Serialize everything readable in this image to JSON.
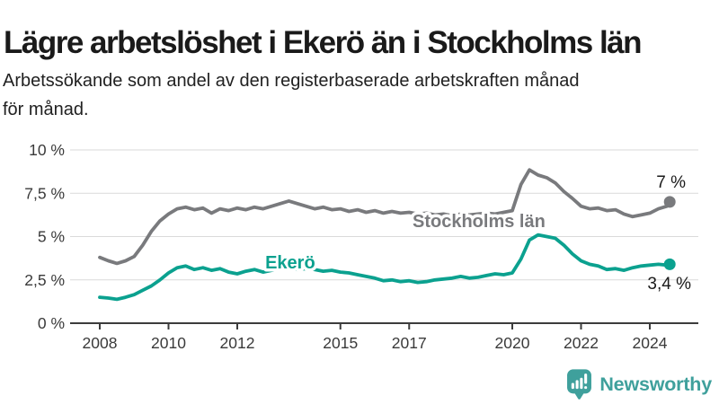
{
  "header": {
    "title": "Lägre arbetslöshet i Ekerö än i Stockholms län",
    "subtitle": "Arbetssökande som andel av den registerbaserade arbetskraften månad för månad.",
    "subtitle_lines": [
      "Arbetssökande som andel av den registerbaserade arbetskraften månad",
      "för månad."
    ]
  },
  "chart_data": {
    "type": "line",
    "title": "Lägre arbetslöshet i Ekerö än i Stockholms län",
    "xlabel": "",
    "ylabel": "Arbetssökande som andel av den registerbaserade arbetskraften",
    "unit": "%",
    "ylim": [
      0,
      10
    ],
    "xlim": [
      2008,
      2024.58
    ],
    "grid": "horizontal",
    "legend": "inline-labels",
    "yticks": [
      {
        "value": 0,
        "label": "0 %"
      },
      {
        "value": 2.5,
        "label": "2,5 %"
      },
      {
        "value": 5,
        "label": "5 %"
      },
      {
        "value": 7.5,
        "label": "7,5 %"
      },
      {
        "value": 10,
        "label": "10 %"
      }
    ],
    "xticks": [
      {
        "value": 2008,
        "label": "2008"
      },
      {
        "value": 2010,
        "label": "2010"
      },
      {
        "value": 2012,
        "label": "2012"
      },
      {
        "value": 2015,
        "label": "2015"
      },
      {
        "value": 2017,
        "label": "2017"
      },
      {
        "value": 2020,
        "label": "2020"
      },
      {
        "value": 2022,
        "label": "2022"
      },
      {
        "value": 2024,
        "label": "2024"
      }
    ],
    "x": [
      2008,
      2008.25,
      2008.5,
      2008.75,
      2009,
      2009.25,
      2009.5,
      2009.75,
      2010,
      2010.25,
      2010.5,
      2010.75,
      2011,
      2011.25,
      2011.5,
      2011.75,
      2012,
      2012.25,
      2012.5,
      2012.75,
      2013,
      2013.25,
      2013.5,
      2013.75,
      2014,
      2014.25,
      2014.5,
      2014.75,
      2015,
      2015.25,
      2015.5,
      2015.75,
      2016,
      2016.25,
      2016.5,
      2016.75,
      2017,
      2017.25,
      2017.5,
      2017.75,
      2018,
      2018.25,
      2018.5,
      2018.75,
      2019,
      2019.25,
      2019.5,
      2019.75,
      2020,
      2020.25,
      2020.5,
      2020.75,
      2021,
      2021.25,
      2021.5,
      2021.75,
      2022,
      2022.25,
      2022.5,
      2022.75,
      2023,
      2023.25,
      2023.5,
      2023.75,
      2024,
      2024.25,
      2024.5,
      2024.58
    ],
    "series": [
      {
        "name": "Stockholms län",
        "color": "#797a7d",
        "end_label": "7 %",
        "values": [
          3.8,
          3.6,
          3.45,
          3.6,
          3.85,
          4.5,
          5.3,
          5.9,
          6.3,
          6.6,
          6.7,
          6.55,
          6.65,
          6.35,
          6.6,
          6.5,
          6.65,
          6.55,
          6.7,
          6.6,
          6.75,
          6.9,
          7.05,
          6.9,
          6.75,
          6.6,
          6.7,
          6.55,
          6.6,
          6.45,
          6.55,
          6.4,
          6.5,
          6.35,
          6.45,
          6.35,
          6.4,
          6.3,
          6.35,
          6.25,
          6.3,
          6.2,
          6.3,
          6.25,
          6.3,
          6.35,
          6.3,
          6.4,
          6.5,
          8.0,
          8.85,
          8.55,
          8.4,
          8.1,
          7.6,
          7.2,
          6.75,
          6.6,
          6.65,
          6.5,
          6.55,
          6.3,
          6.15,
          6.25,
          6.35,
          6.6,
          6.75,
          7.0
        ]
      },
      {
        "name": "Ekerö",
        "color": "#0ba18f",
        "end_label": "3,4 %",
        "values": [
          1.5,
          1.45,
          1.38,
          1.5,
          1.65,
          1.9,
          2.15,
          2.5,
          2.9,
          3.2,
          3.3,
          3.1,
          3.2,
          3.05,
          3.15,
          2.95,
          2.85,
          3.0,
          3.1,
          2.95,
          3.05,
          3.15,
          3.2,
          3.1,
          3.15,
          3.1,
          3.0,
          3.05,
          2.95,
          2.9,
          2.8,
          2.7,
          2.6,
          2.45,
          2.5,
          2.4,
          2.45,
          2.35,
          2.4,
          2.5,
          2.55,
          2.6,
          2.7,
          2.6,
          2.65,
          2.75,
          2.85,
          2.8,
          2.9,
          3.7,
          4.8,
          5.1,
          5.0,
          4.9,
          4.5,
          4.0,
          3.6,
          3.4,
          3.3,
          3.1,
          3.15,
          3.05,
          3.2,
          3.3,
          3.35,
          3.4,
          3.35,
          3.4
        ]
      }
    ]
  },
  "footer": {
    "brand": "Newsworthy"
  },
  "colors": {
    "series_gray": "#797a7d",
    "series_teal": "#0ba18f",
    "logo_teal": "#3fa09c",
    "grid": "#dadada",
    "axis": "#3c3c3c",
    "text": "#1a1a1a"
  }
}
